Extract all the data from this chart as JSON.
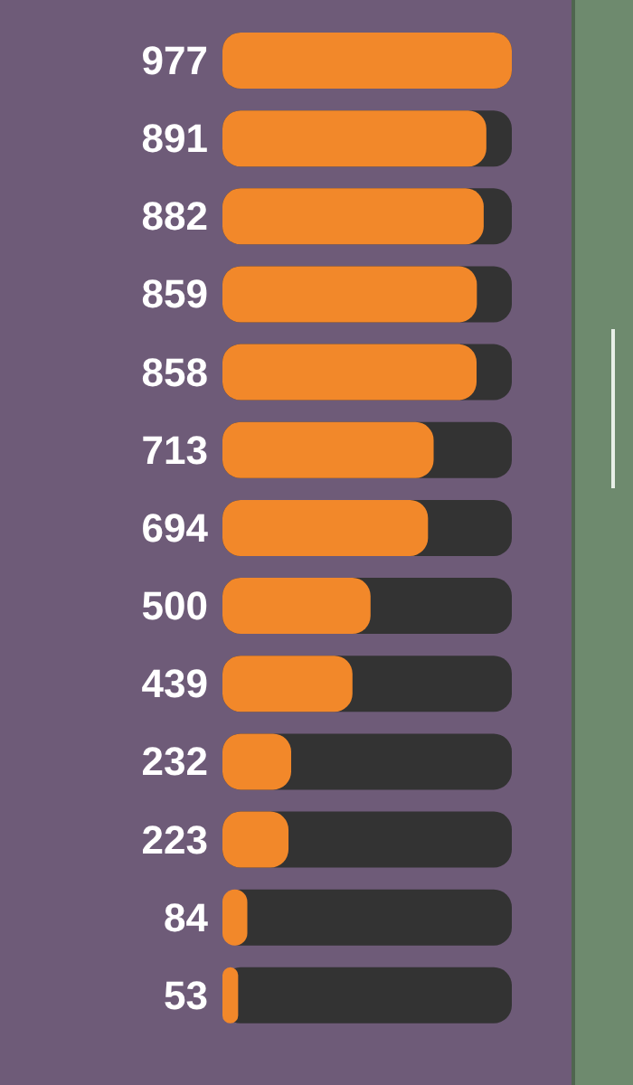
{
  "chart_data": {
    "type": "bar",
    "orientation": "horizontal",
    "categories": [
      null,
      null,
      null,
      null,
      null,
      null,
      null,
      null,
      null,
      null,
      null,
      null,
      null
    ],
    "values": [
      977,
      891,
      882,
      859,
      858,
      713,
      694,
      500,
      439,
      232,
      223,
      84,
      53
    ],
    "color": "#f2882a",
    "data_labels": true
  }
}
